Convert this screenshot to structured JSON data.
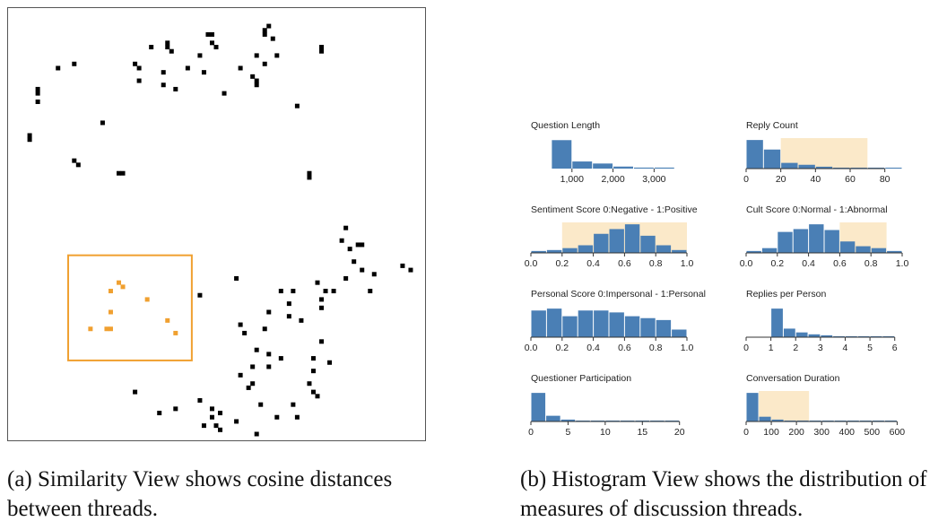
{
  "chart_data": [
    {
      "type": "scatter",
      "xlim": [
        0,
        100
      ],
      "ylim": [
        0,
        100
      ],
      "series": [
        {
          "points": [
            [
              4,
              29
            ],
            [
              4,
              30
            ],
            [
              6,
              21
            ],
            [
              6,
              19
            ],
            [
              6,
              18
            ],
            [
              11,
              13
            ],
            [
              15,
              12
            ],
            [
              22,
              26
            ],
            [
              15,
              35
            ],
            [
              16,
              36
            ],
            [
              26,
              38
            ],
            [
              27,
              38
            ],
            [
              34,
              8
            ],
            [
              37,
              14
            ],
            [
              37,
              17
            ],
            [
              30,
              12
            ],
            [
              31,
              13
            ],
            [
              31,
              16
            ],
            [
              38,
              8
            ],
            [
              38,
              7
            ],
            [
              40,
              18
            ],
            [
              39,
              9
            ],
            [
              43,
              13
            ],
            [
              46,
              10
            ],
            [
              47,
              14
            ],
            [
              49,
              7
            ],
            [
              50,
              8
            ],
            [
              48,
              5
            ],
            [
              52,
              19
            ],
            [
              49,
              5
            ],
            [
              56,
              13
            ],
            [
              59,
              15
            ],
            [
              60,
              16
            ],
            [
              62,
              12
            ],
            [
              60,
              10
            ],
            [
              60,
              17
            ],
            [
              62,
              4
            ],
            [
              62,
              5
            ],
            [
              63,
              3
            ],
            [
              64,
              6
            ],
            [
              65,
              10
            ],
            [
              70,
              22
            ],
            [
              76,
              8
            ],
            [
              76,
              9
            ],
            [
              73,
              38
            ],
            [
              73,
              39
            ],
            [
              82,
              51
            ],
            [
              81,
              54
            ],
            [
              83,
              56
            ],
            [
              85,
              55
            ],
            [
              86,
              55
            ],
            [
              84,
              59
            ],
            [
              86,
              61
            ],
            [
              82,
              63
            ],
            [
              89,
              62
            ],
            [
              88,
              66
            ],
            [
              75,
              64
            ],
            [
              77,
              66
            ],
            [
              79,
              66
            ],
            [
              76,
              68
            ],
            [
              69,
              66
            ],
            [
              55,
              63
            ],
            [
              66,
              66
            ],
            [
              63,
              71
            ],
            [
              46,
              67
            ],
            [
              62,
              75
            ],
            [
              68,
              69
            ],
            [
              68,
              72
            ],
            [
              76,
              70
            ],
            [
              71,
              73
            ],
            [
              56,
              74
            ],
            [
              60,
              80
            ],
            [
              63,
              81
            ],
            [
              66,
              82
            ],
            [
              76,
              78
            ],
            [
              74,
              82
            ],
            [
              57,
              76
            ],
            [
              59,
              84
            ],
            [
              74,
              85
            ],
            [
              73,
              88
            ],
            [
              74,
              90
            ],
            [
              78,
              83
            ],
            [
              58,
              89
            ],
            [
              56,
              86
            ],
            [
              63,
              84
            ],
            [
              61,
              93
            ],
            [
              65,
              96
            ],
            [
              69,
              93
            ],
            [
              70,
              96
            ],
            [
              75,
              91
            ],
            [
              49,
              94
            ],
            [
              49,
              96
            ],
            [
              51,
              95
            ],
            [
              46,
              92
            ],
            [
              50,
              98
            ],
            [
              47,
              98
            ],
            [
              51,
              99
            ],
            [
              40,
              94
            ],
            [
              36,
              95
            ],
            [
              30,
              90
            ],
            [
              59,
              88
            ],
            [
              55,
              97
            ],
            [
              60,
              100
            ],
            [
              98,
              61
            ],
            [
              96,
              60
            ]
          ],
          "color": "#000000"
        },
        {
          "name": "selected",
          "points": [
            [
              26,
              64
            ],
            [
              27,
              65
            ],
            [
              24,
              66
            ],
            [
              33,
              68
            ],
            [
              24,
              71
            ],
            [
              38,
              73
            ],
            [
              19,
              75
            ],
            [
              24,
              75
            ],
            [
              23,
              75
            ],
            [
              40,
              76
            ]
          ],
          "color": "#f0a030"
        }
      ],
      "selection_box": {
        "x": [
          13.5,
          44
        ],
        "y": [
          57.5,
          82.5
        ],
        "color": "#f0a030"
      }
    },
    {
      "type": "bar",
      "title": "Question Length",
      "xlim": [
        0,
        3800
      ],
      "ticks": [
        "1,000",
        "2,000",
        "3,000"
      ],
      "tick_values": [
        1000,
        2000,
        3000
      ],
      "bin_width": 500,
      "bin_starts": [
        500,
        1000,
        1500,
        2000,
        2500,
        3000
      ],
      "values": [
        28,
        7,
        5,
        2,
        1,
        1
      ],
      "ylim": [
        0,
        30
      ],
      "highlight": null
    },
    {
      "type": "bar",
      "title": "Reply Count",
      "xlim": [
        0,
        90
      ],
      "ticks": [
        "0",
        "20",
        "40",
        "60",
        "80"
      ],
      "tick_values": [
        0,
        20,
        40,
        60,
        80
      ],
      "bin_width": 10,
      "bin_starts": [
        0,
        10,
        20,
        30,
        40,
        50,
        60,
        70,
        80
      ],
      "values": [
        30,
        20,
        6,
        4,
        2,
        1,
        1,
        1,
        1
      ],
      "ylim": [
        0,
        32
      ],
      "highlight": [
        20,
        70
      ]
    },
    {
      "type": "bar",
      "title": "Sentiment Score 0:Negative - 1:Positive",
      "xlim": [
        0,
        1
      ],
      "ticks": [
        "0.0",
        "0.2",
        "0.4",
        "0.6",
        "0.8",
        "1.0"
      ],
      "tick_values": [
        0,
        0.2,
        0.4,
        0.6,
        0.8,
        1
      ],
      "bin_width": 0.1,
      "bin_starts": [
        0,
        0.1,
        0.2,
        0.3,
        0.4,
        0.5,
        0.6,
        0.7,
        0.8,
        0.9
      ],
      "values": [
        2,
        3,
        5,
        8,
        20,
        25,
        30,
        18,
        8,
        3
      ],
      "ylim": [
        0,
        32
      ],
      "highlight": [
        0.2,
        1.0
      ]
    },
    {
      "type": "bar",
      "title": "Cult Score 0:Normal - 1:Abnormal",
      "xlim": [
        0,
        1
      ],
      "ticks": [
        "0.0",
        "0.2",
        "0.4",
        "0.6",
        "0.8",
        "1.0"
      ],
      "tick_values": [
        0,
        0.2,
        0.4,
        0.6,
        0.8,
        1
      ],
      "bin_width": 0.1,
      "bin_starts": [
        0,
        0.1,
        0.2,
        0.3,
        0.4,
        0.5,
        0.6,
        0.7,
        0.8,
        0.9
      ],
      "values": [
        2,
        5,
        22,
        25,
        30,
        24,
        12,
        7,
        5,
        2
      ],
      "ylim": [
        0,
        32
      ],
      "highlight": [
        0.6,
        0.9
      ]
    },
    {
      "type": "bar",
      "title": "Personal Score 0:Impersonal - 1:Personal",
      "xlim": [
        0,
        1
      ],
      "ticks": [
        "0.0",
        "0.2",
        "0.4",
        "0.6",
        "0.8",
        "1.0"
      ],
      "tick_values": [
        0,
        0.2,
        0.4,
        0.6,
        0.8,
        1
      ],
      "bin_width": 0.1,
      "bin_starts": [
        0,
        0.1,
        0.2,
        0.3,
        0.4,
        0.5,
        0.6,
        0.7,
        0.8,
        0.9
      ],
      "values": [
        28,
        30,
        22,
        28,
        28,
        26,
        22,
        20,
        18,
        8
      ],
      "ylim": [
        0,
        32
      ],
      "highlight": null
    },
    {
      "type": "bar",
      "title": "Replies per Person",
      "xlim": [
        0,
        6.3
      ],
      "ticks": [
        "0",
        "1",
        "2",
        "3",
        "4",
        "5",
        "6"
      ],
      "tick_values": [
        0,
        1,
        2,
        3,
        4,
        5,
        6
      ],
      "bin_width": 0.5,
      "bin_starts": [
        1,
        1.5,
        2,
        2.5,
        3,
        3.5,
        4,
        4.5,
        5,
        5.5
      ],
      "values": [
        30,
        9,
        5,
        3,
        2,
        1,
        1,
        1,
        1,
        1
      ],
      "ylim": [
        0,
        32
      ],
      "highlight": null
    },
    {
      "type": "bar",
      "title": "Questioner Participation",
      "xlim": [
        0,
        21
      ],
      "ticks": [
        "0",
        "5",
        "10",
        "15",
        "20"
      ],
      "tick_values": [
        0,
        5,
        10,
        15,
        20
      ],
      "bin_width": 2,
      "bin_starts": [
        0,
        2,
        4,
        6,
        8,
        10,
        12,
        14,
        16,
        18
      ],
      "values": [
        30,
        6,
        2,
        1,
        1,
        1,
        1,
        1,
        1,
        1
      ],
      "ylim": [
        0,
        32
      ],
      "highlight": null
    },
    {
      "type": "bar",
      "title": "Conversation Duration",
      "xlim": [
        0,
        620
      ],
      "ticks": [
        "0",
        "100",
        "200",
        "300",
        "400",
        "500",
        "600"
      ],
      "tick_values": [
        0,
        100,
        200,
        300,
        400,
        500,
        600
      ],
      "bin_width": 50,
      "bin_starts": [
        0,
        50,
        100,
        150,
        200,
        250,
        300,
        350,
        400,
        450,
        500,
        550
      ],
      "values": [
        30,
        5,
        2,
        1,
        1,
        1,
        1,
        1,
        1,
        1,
        1,
        1
      ],
      "ylim": [
        0,
        32
      ],
      "highlight": [
        50,
        250
      ]
    }
  ],
  "captions": {
    "a": "(a) Similarity View shows cosine distances between threads.",
    "b": "(b) Histogram View shows the distribution of measures of discussion threads."
  },
  "colors": {
    "bar": "#4a7fb5",
    "highlight": "#fbe9c9",
    "selected": "#f0a030",
    "point": "#000000"
  }
}
